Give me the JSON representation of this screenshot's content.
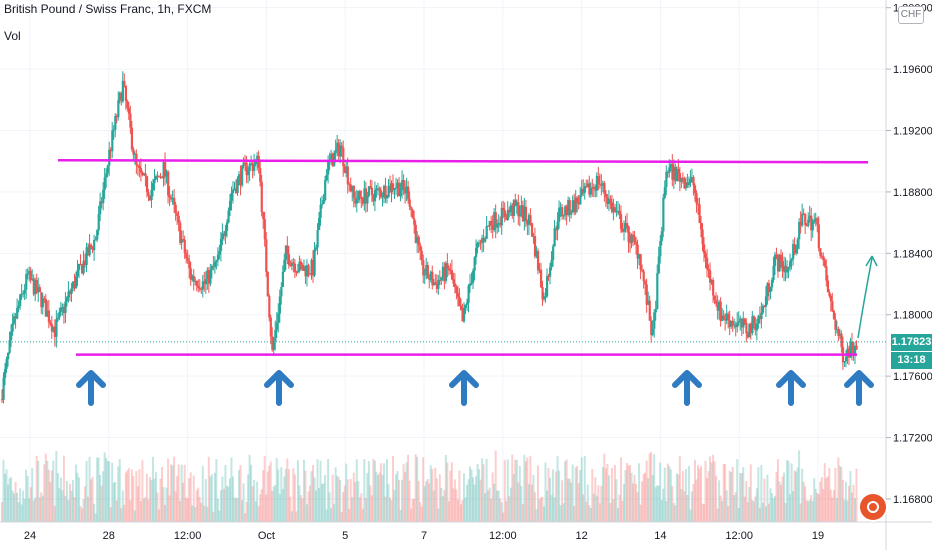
{
  "header": {
    "symbol_line": "British Pound / Swiss Franc, 1h, FXCM",
    "volume_label": "Vol",
    "currency": "CHF"
  },
  "price_axis": {
    "ticks": [
      "1.20000",
      "1.19600",
      "1.19200",
      "1.18800",
      "1.18400",
      "1.18000",
      "1.17600",
      "1.17200",
      "1.16800"
    ],
    "current_price": "1.17823",
    "countdown": "13:18",
    "current_color": "#26a69a"
  },
  "time_axis": {
    "ticks": [
      "24",
      "28",
      "12:00",
      "Oct",
      "5",
      "7",
      "12:00",
      "12",
      "14",
      "12:00",
      "19"
    ]
  },
  "colors": {
    "up": "#26a69a",
    "down": "#ef5350",
    "level_lines": "#e91ee9",
    "arrows": "#2f7bc1",
    "projection": "#26a69a"
  },
  "chart_data": {
    "type": "candlestick",
    "title": "British Pound / Swiss Franc, 1h, FXCM",
    "ylim": [
      1.1665,
      1.2005
    ],
    "x_ticks": [
      "24",
      "28",
      "12:00",
      "Oct",
      "5",
      "7",
      "12:00",
      "12",
      "14",
      "12:00",
      "19"
    ],
    "price_path": [
      {
        "x": "24",
        "price": 1.1745
      },
      {
        "x": "",
        "price": 1.1795
      },
      {
        "x": "",
        "price": 1.1825
      },
      {
        "x": "",
        "price": 1.181
      },
      {
        "x": "",
        "price": 1.179
      },
      {
        "x": "",
        "price": 1.1812
      },
      {
        "x": "",
        "price": 1.1832
      },
      {
        "x": "",
        "price": 1.185
      },
      {
        "x": "28",
        "price": 1.1905
      },
      {
        "x": "",
        "price": 1.195
      },
      {
        "x": "",
        "price": 1.1895
      },
      {
        "x": "",
        "price": 1.188
      },
      {
        "x": "",
        "price": 1.1895
      },
      {
        "x": "12:00",
        "price": 1.186
      },
      {
        "x": "",
        "price": 1.1825
      },
      {
        "x": "",
        "price": 1.182
      },
      {
        "x": "",
        "price": 1.1835
      },
      {
        "x": "",
        "price": 1.188
      },
      {
        "x": "",
        "price": 1.1895
      },
      {
        "x": "Oct",
        "price": 1.19
      },
      {
        "x": "",
        "price": 1.1775
      },
      {
        "x": "",
        "price": 1.184
      },
      {
        "x": "",
        "price": 1.183
      },
      {
        "x": "",
        "price": 1.183
      },
      {
        "x": "",
        "price": 1.1895
      },
      {
        "x": "5",
        "price": 1.191
      },
      {
        "x": "",
        "price": 1.1875
      },
      {
        "x": "",
        "price": 1.1878
      },
      {
        "x": "",
        "price": 1.188
      },
      {
        "x": "",
        "price": 1.1885
      },
      {
        "x": "",
        "price": 1.188
      },
      {
        "x": "",
        "price": 1.183
      },
      {
        "x": "7",
        "price": 1.182
      },
      {
        "x": "",
        "price": 1.183
      },
      {
        "x": "",
        "price": 1.1795
      },
      {
        "x": "",
        "price": 1.184
      },
      {
        "x": "12:00",
        "price": 1.186
      },
      {
        "x": "",
        "price": 1.1865
      },
      {
        "x": "",
        "price": 1.187
      },
      {
        "x": "",
        "price": 1.186
      },
      {
        "x": "12",
        "price": 1.181
      },
      {
        "x": "",
        "price": 1.1865
      },
      {
        "x": "",
        "price": 1.187
      },
      {
        "x": "",
        "price": 1.1878
      },
      {
        "x": "",
        "price": 1.1888
      },
      {
        "x": "",
        "price": 1.187
      },
      {
        "x": "",
        "price": 1.1855
      },
      {
        "x": "",
        "price": 1.184
      },
      {
        "x": "14",
        "price": 1.1785
      },
      {
        "x": "",
        "price": 1.1895
      },
      {
        "x": "",
        "price": 1.189
      },
      {
        "x": "",
        "price": 1.1885
      },
      {
        "x": "",
        "price": 1.183
      },
      {
        "x": "12:00",
        "price": 1.18
      },
      {
        "x": "",
        "price": 1.1795
      },
      {
        "x": "",
        "price": 1.179
      },
      {
        "x": "",
        "price": 1.18
      },
      {
        "x": "",
        "price": 1.1835
      },
      {
        "x": "19",
        "price": 1.183
      },
      {
        "x": "",
        "price": 1.1862
      },
      {
        "x": "",
        "price": 1.186
      },
      {
        "x": "",
        "price": 1.181
      },
      {
        "x": "",
        "price": 1.1774
      },
      {
        "x": "",
        "price": 1.1782
      }
    ],
    "support_level": 1.1774,
    "resistance_level": 1.19,
    "touch_markers": 6
  }
}
